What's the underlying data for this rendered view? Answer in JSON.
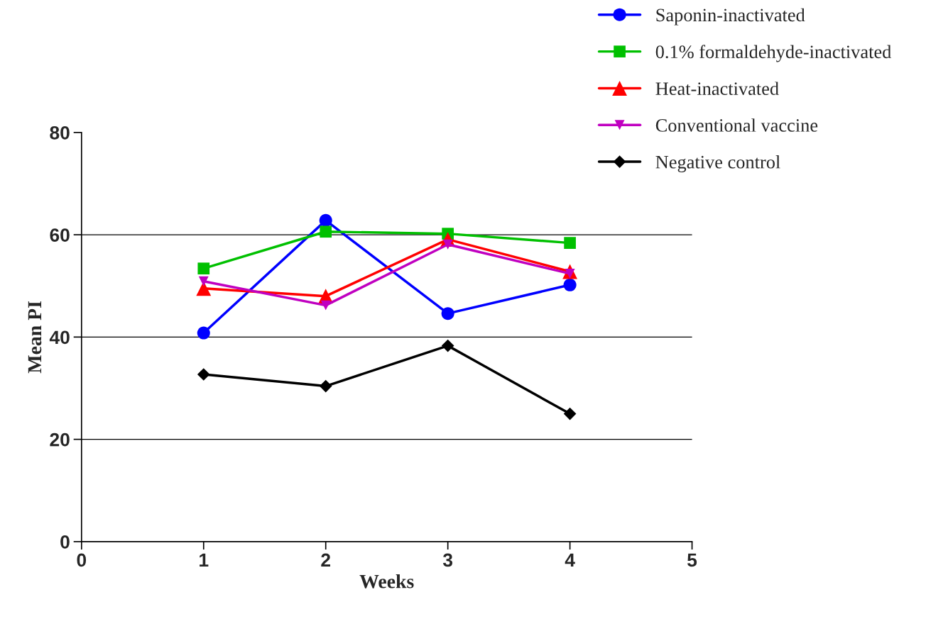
{
  "chart_data": {
    "type": "line",
    "xlabel": "Weeks",
    "ylabel": "Mean PI",
    "x": [
      1,
      2,
      3,
      4
    ],
    "xlim": [
      0,
      5
    ],
    "xticks": [
      0,
      1,
      2,
      3,
      4,
      5
    ],
    "ylim": [
      0,
      80
    ],
    "yticks": [
      0,
      20,
      40,
      60,
      80
    ],
    "grid": "y",
    "legend": "top right",
    "series": [
      {
        "name": "Saponin-inactivated",
        "color": "#0000ff",
        "marker": "circle",
        "values": [
          40.8,
          62.8,
          44.6,
          50.2
        ]
      },
      {
        "name": "0.1% formaldehyde-inactivated",
        "color": "#00c000",
        "marker": "square",
        "values": [
          53.4,
          60.6,
          60.2,
          58.4
        ]
      },
      {
        "name": "Heat-inactivated",
        "color": "#ff0000",
        "marker": "triangle",
        "values": [
          49.5,
          48.0,
          59.1,
          52.8
        ]
      },
      {
        "name": "Conventional vaccine",
        "color": "#c000c0",
        "marker": "triangle_down",
        "values": [
          50.9,
          46.2,
          58.1,
          52.4
        ]
      },
      {
        "name": "Negative control",
        "color": "#000000",
        "marker": "diamond",
        "values": [
          32.7,
          30.4,
          38.3,
          25.0
        ]
      }
    ]
  }
}
